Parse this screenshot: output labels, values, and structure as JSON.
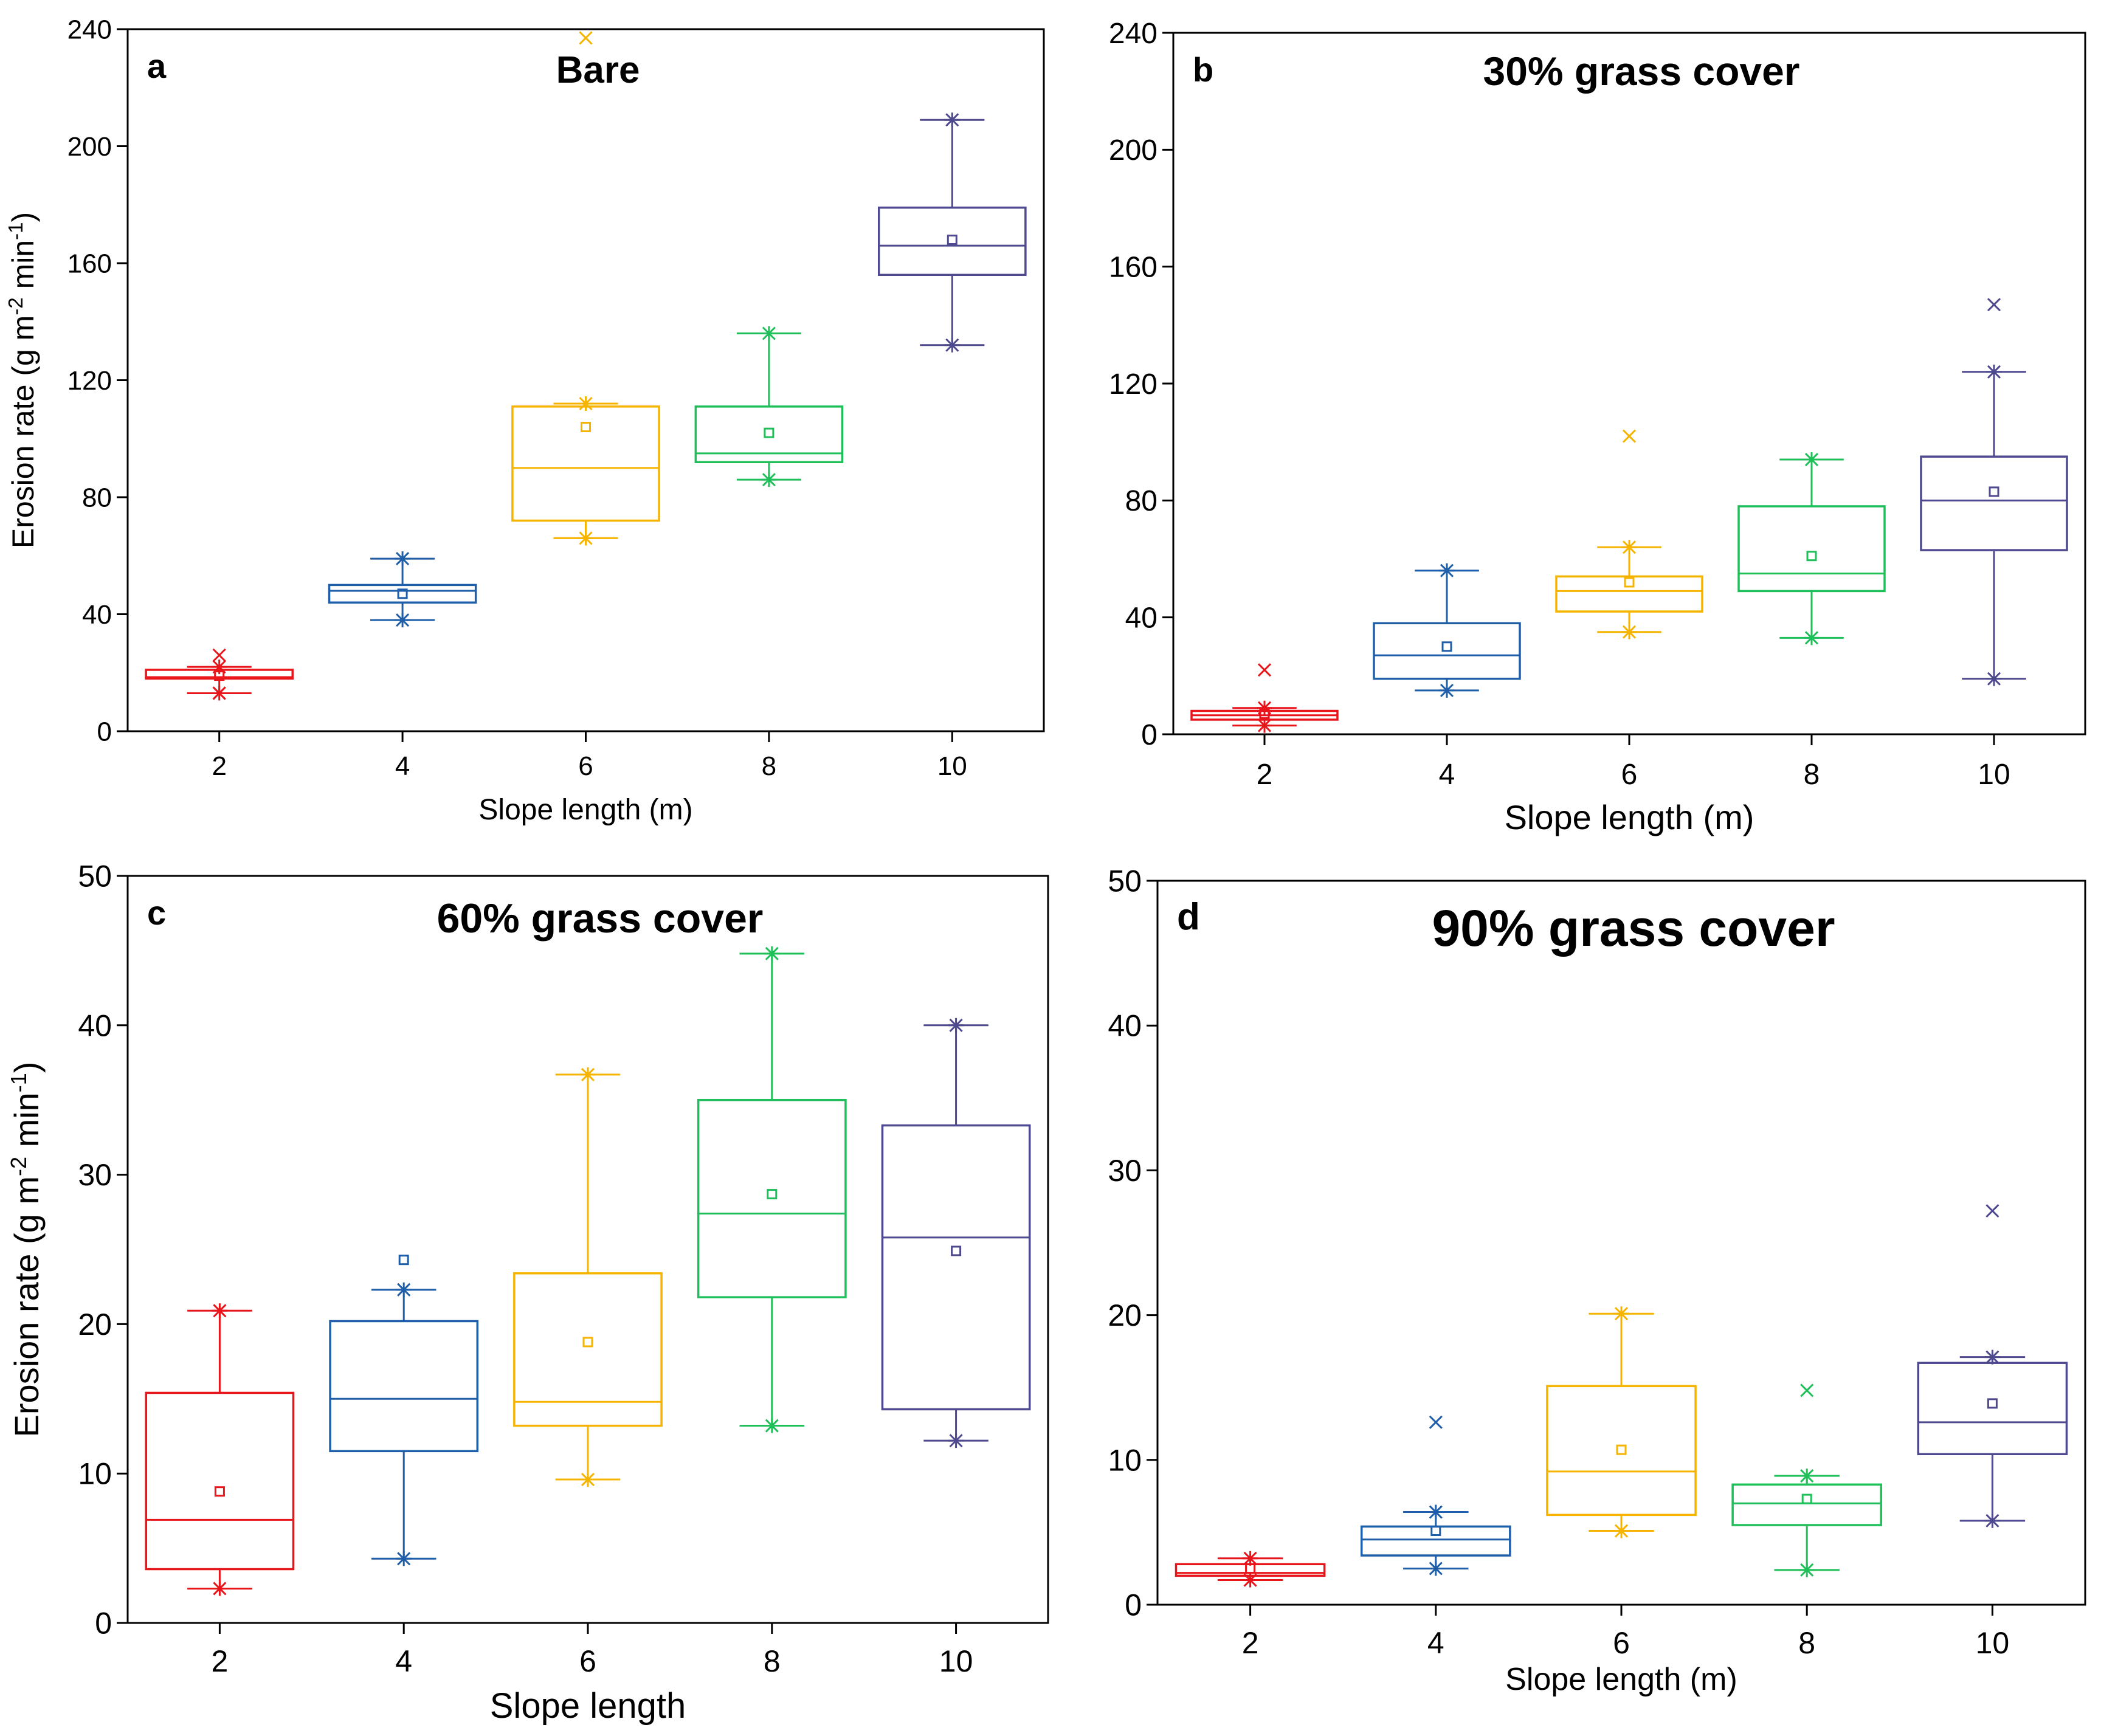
{
  "colors": [
    "#e8151b",
    "#1f5ea8",
    "#f5b400",
    "#1fbf5a",
    "#4f4a8f"
  ],
  "chart_data": [
    {
      "type": "box",
      "panel": "a",
      "title": "Bare",
      "xlabel": "Slope length (m)",
      "ylabel": "Erosion rate (g m-2 min-1)",
      "ylim": [
        0,
        240
      ],
      "yticks": [
        "0",
        "40",
        "80",
        "120",
        "160",
        "200",
        "240"
      ],
      "categories": [
        "2",
        "4",
        "6",
        "8",
        "10"
      ],
      "boxes": [
        {
          "min": 13,
          "q1": 18,
          "median": 18.5,
          "q3": 21,
          "max": 22,
          "mean": 19,
          "outliers": [
            26,
            13
          ]
        },
        {
          "min": 38,
          "q1": 44,
          "median": 48,
          "q3": 50,
          "max": 59,
          "mean": 47,
          "outliers": []
        },
        {
          "min": 66,
          "q1": 72,
          "median": 90,
          "q3": 111,
          "max": 112,
          "mean": 104,
          "outliers": [
            237
          ]
        },
        {
          "min": 86,
          "q1": 92,
          "median": 95,
          "q3": 111,
          "max": 136,
          "mean": 102,
          "outliers": []
        },
        {
          "min": 132,
          "q1": 156,
          "median": 166,
          "q3": 179,
          "max": 209,
          "mean": 168,
          "outliers": []
        }
      ]
    },
    {
      "type": "box",
      "panel": "b",
      "title": "30% grass cover",
      "xlabel": "Slope length (m)",
      "ylabel": "",
      "ylim": [
        0,
        240
      ],
      "yticks": [
        "0",
        "40",
        "80",
        "120",
        "160",
        "200",
        "240"
      ],
      "categories": [
        "2",
        "4",
        "6",
        "8",
        "10"
      ],
      "boxes": [
        {
          "min": 3,
          "q1": 5,
          "median": 6.5,
          "q3": 8,
          "max": 9,
          "mean": 7,
          "outliers": [
            22
          ]
        },
        {
          "min": 15,
          "q1": 19,
          "median": 27,
          "q3": 38,
          "max": 56,
          "mean": 30,
          "outliers": []
        },
        {
          "min": 35,
          "q1": 42,
          "median": 49,
          "q3": 54,
          "max": 64,
          "mean": 52,
          "outliers": [
            102
          ]
        },
        {
          "min": 33,
          "q1": 49,
          "median": 55,
          "q3": 78,
          "max": 94,
          "mean": 61,
          "outliers": []
        },
        {
          "min": 19,
          "q1": 63,
          "median": 80,
          "q3": 95,
          "max": 124,
          "mean": 83,
          "outliers": [
            147
          ]
        }
      ]
    },
    {
      "type": "box",
      "panel": "c",
      "title": "60% grass cover",
      "xlabel": "Slope length",
      "ylabel": "Erosion rate (g m-2 min-1)",
      "ylim": [
        0,
        50
      ],
      "yticks": [
        "0",
        "10",
        "20",
        "30",
        "40",
        "50"
      ],
      "categories": [
        "2",
        "4",
        "6",
        "8",
        "10"
      ],
      "boxes": [
        {
          "min": 2.3,
          "q1": 3.6,
          "median": 6.9,
          "q3": 15.4,
          "max": 20.9,
          "mean": 8.8,
          "outliers": []
        },
        {
          "min": 4.3,
          "q1": 11.5,
          "median": 15.0,
          "q3": 20.2,
          "max": 22.3,
          "mean": 24.3,
          "outliers": []
        },
        {
          "min": 9.6,
          "q1": 13.2,
          "median": 14.8,
          "q3": 23.4,
          "max": 36.7,
          "mean": 18.8,
          "outliers": []
        },
        {
          "min": 13.2,
          "q1": 21.8,
          "median": 27.4,
          "q3": 35.0,
          "max": 44.8,
          "mean": 28.7,
          "outliers": []
        },
        {
          "min": 12.2,
          "q1": 14.3,
          "median": 25.8,
          "q3": 33.3,
          "max": 40.0,
          "mean": 24.9,
          "outliers": []
        }
      ]
    },
    {
      "type": "box",
      "panel": "d",
      "title": "90% grass cover",
      "xlabel": "Slope length (m)",
      "ylabel": "",
      "ylim": [
        0,
        50
      ],
      "yticks": [
        "0",
        "10",
        "20",
        "30",
        "40",
        "50"
      ],
      "categories": [
        "2",
        "4",
        "6",
        "8",
        "10"
      ],
      "boxes": [
        {
          "min": 1.7,
          "q1": 2.0,
          "median": 2.2,
          "q3": 2.8,
          "max": 3.2,
          "mean": 2.5,
          "outliers": []
        },
        {
          "min": 2.5,
          "q1": 3.4,
          "median": 4.5,
          "q3": 5.4,
          "max": 6.4,
          "mean": 5.1,
          "outliers": [
            12.6
          ]
        },
        {
          "min": 5.1,
          "q1": 6.2,
          "median": 9.2,
          "q3": 15.1,
          "max": 20.1,
          "mean": 10.7,
          "outliers": []
        },
        {
          "min": 2.4,
          "q1": 5.5,
          "median": 7.0,
          "q3": 8.3,
          "max": 8.9,
          "mean": 7.3,
          "outliers": [
            14.8
          ]
        },
        {
          "min": 5.8,
          "q1": 10.4,
          "median": 12.6,
          "q3": 16.7,
          "max": 17.1,
          "mean": 13.9,
          "outliers": [
            27.2
          ]
        }
      ]
    }
  ]
}
